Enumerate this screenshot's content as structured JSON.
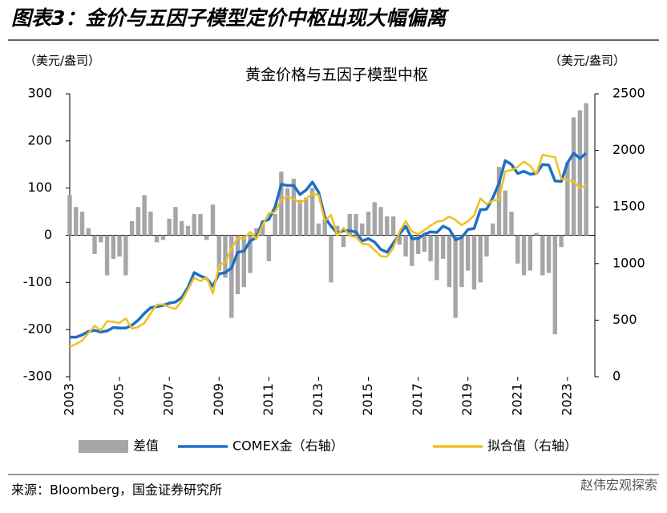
{
  "header": {
    "title": "图表3：金价与五因子模型定价中枢出现大幅偏离"
  },
  "chart_data": {
    "type": "combo",
    "title": "黄金价格与五因子模型中枢",
    "ylabel": "（美元/盎司）",
    "y2label": "（美元/盎司）",
    "x": [
      2003,
      2003.25,
      2003.5,
      2003.75,
      2004,
      2004.25,
      2004.5,
      2004.75,
      2005,
      2005.25,
      2005.5,
      2005.75,
      2006,
      2006.25,
      2006.5,
      2006.75,
      2007,
      2007.25,
      2007.5,
      2007.75,
      2008,
      2008.25,
      2008.5,
      2008.75,
      2009,
      2009.25,
      2009.5,
      2009.75,
      2010,
      2010.25,
      2010.5,
      2010.75,
      2011,
      2011.25,
      2011.5,
      2011.75,
      2012,
      2012.25,
      2012.5,
      2012.75,
      2013,
      2013.25,
      2013.5,
      2013.75,
      2014,
      2014.25,
      2014.5,
      2014.75,
      2015,
      2015.25,
      2015.5,
      2015.75,
      2016,
      2016.25,
      2016.5,
      2016.75,
      2017,
      2017.25,
      2017.5,
      2017.75,
      2018,
      2018.25,
      2018.5,
      2018.75,
      2019,
      2019.25,
      2019.5,
      2019.75,
      2020,
      2020.25,
      2020.5,
      2020.75,
      2021,
      2021.25,
      2021.5,
      2021.75,
      2022,
      2022.25,
      2022.5,
      2022.75,
      2023,
      2023.25,
      2023.5,
      2023.75
    ],
    "xlim": [
      2003,
      2024.1
    ],
    "xticks": [
      2003,
      2005,
      2007,
      2009,
      2011,
      2013,
      2015,
      2017,
      2019,
      2021,
      2023
    ],
    "ylim": [
      -300,
      300
    ],
    "yticks": [
      -300,
      -200,
      -100,
      0,
      100,
      200,
      300
    ],
    "y2lim": [
      0,
      2500
    ],
    "y2ticks": [
      0,
      500,
      1000,
      1500,
      2000,
      2500
    ],
    "series": [
      {
        "name": "差值",
        "type": "bar",
        "axis": "y",
        "color": "#a6a6a6",
        "values": [
          85,
          60,
          50,
          15,
          -40,
          -15,
          -85,
          -50,
          -45,
          -85,
          30,
          60,
          85,
          50,
          -15,
          -10,
          35,
          60,
          30,
          20,
          45,
          45,
          -10,
          65,
          -75,
          -90,
          -175,
          -125,
          -110,
          -80,
          15,
          30,
          -55,
          45,
          135,
          100,
          120,
          75,
          80,
          100,
          25,
          35,
          -100,
          20,
          -25,
          45,
          45,
          25,
          50,
          70,
          60,
          40,
          40,
          -20,
          -45,
          -65,
          -40,
          -35,
          -55,
          -95,
          -50,
          -110,
          -175,
          -110,
          -75,
          -115,
          -100,
          -45,
          25,
          145,
          95,
          50,
          -60,
          -85,
          -75,
          5,
          -85,
          -80,
          -210,
          -25,
          155,
          250,
          265,
          280
        ]
      },
      {
        "name": "COMEX金（右轴）",
        "type": "line",
        "axis": "y2",
        "color": "#1f6fc5",
        "values": [
          350,
          350,
          370,
          400,
          410,
          395,
          405,
          435,
          430,
          430,
          455,
          500,
          560,
          610,
          620,
          630,
          650,
          660,
          700,
          790,
          920,
          890,
          870,
          800,
          910,
          920,
          960,
          1100,
          1110,
          1200,
          1230,
          1370,
          1390,
          1500,
          1700,
          1690,
          1690,
          1610,
          1650,
          1720,
          1630,
          1410,
          1330,
          1270,
          1290,
          1290,
          1280,
          1200,
          1220,
          1190,
          1125,
          1100,
          1180,
          1260,
          1330,
          1220,
          1220,
          1260,
          1280,
          1275,
          1330,
          1305,
          1210,
          1230,
          1300,
          1310,
          1475,
          1480,
          1580,
          1710,
          1910,
          1875,
          1795,
          1815,
          1790,
          1795,
          1875,
          1870,
          1730,
          1725,
          1890,
          1975,
          1930,
          1975
        ]
      },
      {
        "name": "拟合值（右轴）",
        "type": "line",
        "axis": "y2",
        "color": "#f0c020",
        "values": [
          265,
          290,
          320,
          385,
          450,
          410,
          490,
          485,
          475,
          515,
          425,
          440,
          475,
          560,
          635,
          640,
          615,
          600,
          670,
          770,
          875,
          845,
          880,
          735,
          985,
          1010,
          1135,
          1225,
          1220,
          1280,
          1215,
          1340,
          1445,
          1455,
          1565,
          1590,
          1570,
          1535,
          1570,
          1620,
          1605,
          1375,
          1430,
          1250,
          1315,
          1245,
          1235,
          1175,
          1170,
          1120,
          1065,
          1060,
          1140,
          1280,
          1375,
          1285,
          1260,
          1295,
          1335,
          1370,
          1380,
          1415,
          1385,
          1340,
          1375,
          1425,
          1575,
          1525,
          1555,
          1565,
          1815,
          1825,
          1855,
          1900,
          1865,
          1790,
          1960,
          1950,
          1940,
          1750,
          1735,
          1725,
          1665,
          1695
        ]
      }
    ]
  },
  "footer": {
    "source": "来源：Bloomberg，国金证券研究所",
    "watermark": "赵伟宏观探索"
  }
}
